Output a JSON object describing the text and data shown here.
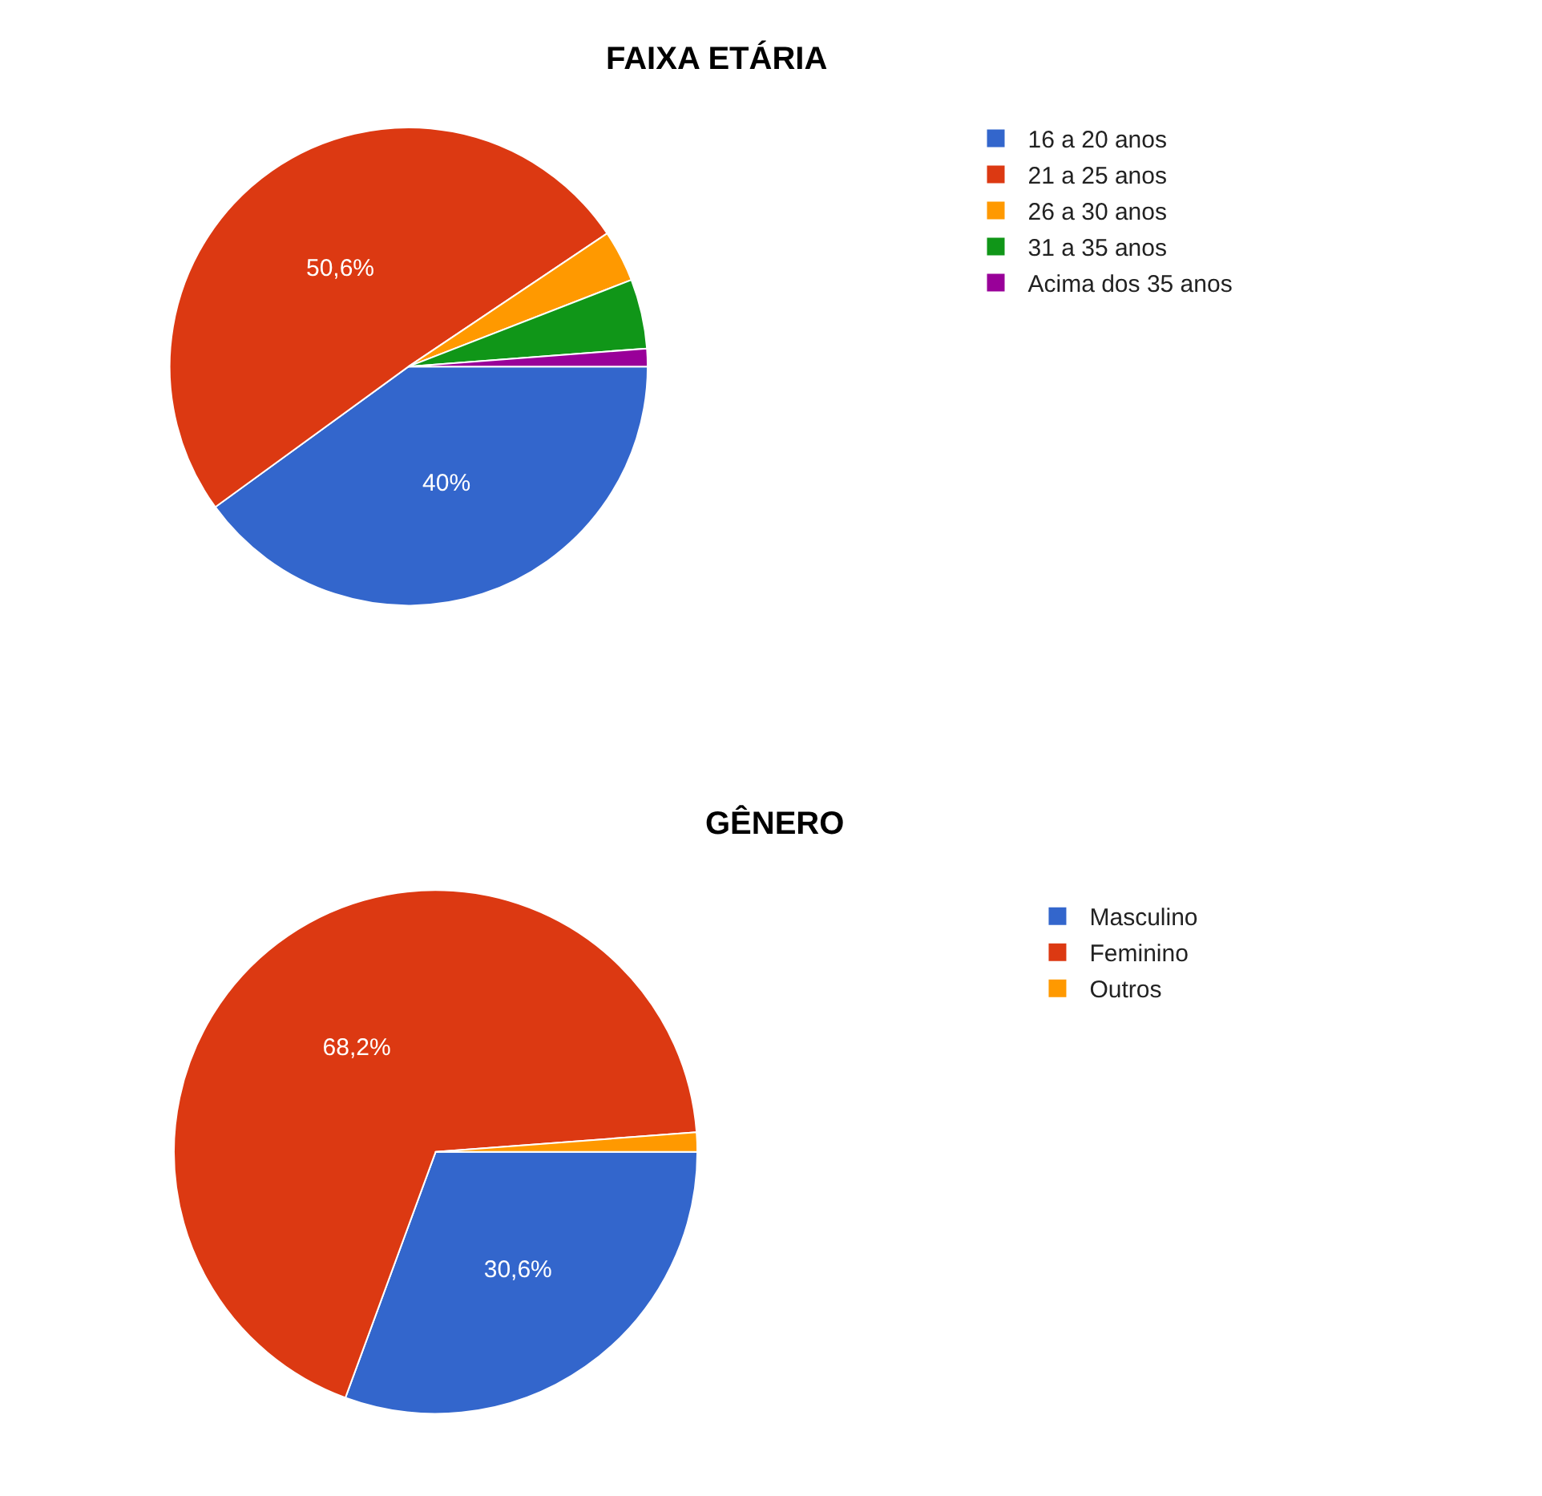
{
  "chart_data": [
    {
      "type": "pie",
      "title": "FAIXA ETÁRIA",
      "categories": [
        "16 a 20 anos",
        "21 a 25 anos",
        "26 a 30 anos",
        "31 a 35 anos",
        "Acima dos 35 anos"
      ],
      "values": [
        40,
        50.6,
        3.5,
        4.7,
        1.2
      ],
      "colors": [
        "#3366cc",
        "#dc3912",
        "#ff9900",
        "#109618",
        "#990099"
      ],
      "value_labels": [
        "40%",
        "50,6%",
        null,
        null,
        null
      ],
      "legend": "top right"
    },
    {
      "type": "pie",
      "title": "GÊNERO",
      "categories": [
        "Masculino",
        "Feminino",
        "Outros"
      ],
      "values": [
        30.6,
        68.2,
        1.2
      ],
      "colors": [
        "#3366cc",
        "#dc3912",
        "#ff9900"
      ],
      "value_labels": [
        "30,6%",
        "68,2%",
        null
      ],
      "legend": "top right"
    }
  ]
}
